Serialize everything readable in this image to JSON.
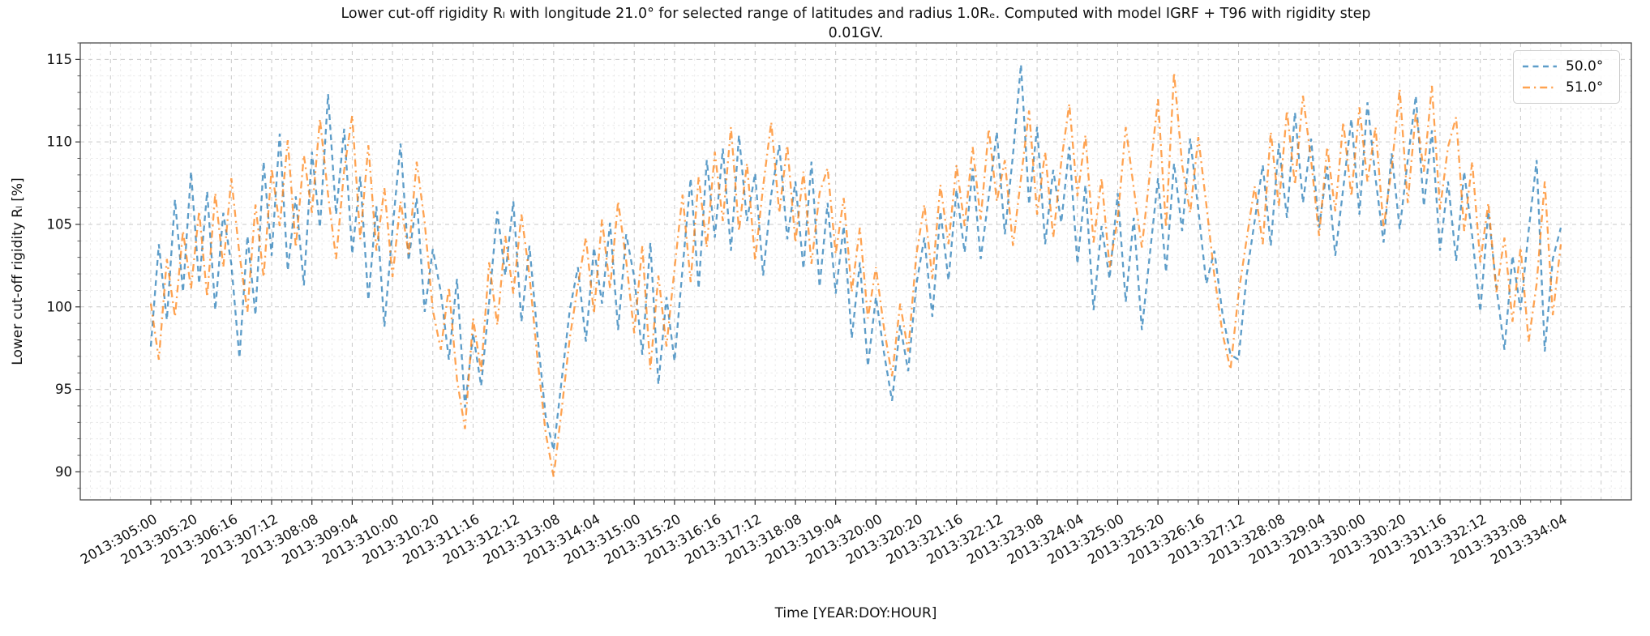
{
  "figure": {
    "title_line1": "Lower cut-off rigidity Rₗ with longitude 21.0° for selected range of latitudes and radius 1.0Rₑ. Computed with model IGRF + T96 with rigidity step",
    "title_line2": "0.01GV."
  },
  "chart_data": {
    "type": "line",
    "title": "Lower cut-off rigidity RL with longitude 21.0° for selected range of latitudes and radius 1.0Re. Computed with model IGRF + T96 with rigidity step 0.01GV.",
    "xlabel": "Time [YEAR:DOY:HOUR]",
    "ylabel": "Lower cut-off rigidity Rₗ [%]",
    "ylim": [
      88.3,
      116.0
    ],
    "y_ticks": [
      90,
      95,
      100,
      105,
      110,
      115
    ],
    "y_minor_step": 1,
    "xlim_hours": [
      -35,
      735
    ],
    "x_tick_step_hours": 20,
    "x_minor_step_hours": 5,
    "x_tick_labels": [
      "2013:305:00",
      "2013:305:20",
      "2013:306:16",
      "2013:307:12",
      "2013:308:08",
      "2013:309:04",
      "2013:310:00",
      "2013:310:20",
      "2013:311:16",
      "2013:312:12",
      "2013:313:08",
      "2013:314:04",
      "2013:315:00",
      "2013:315:20",
      "2013:316:16",
      "2013:317:12",
      "2013:318:08",
      "2013:319:04",
      "2013:320:00",
      "2013:320:20",
      "2013:321:16",
      "2013:322:12",
      "2013:323:08",
      "2013:324:04",
      "2013:325:00",
      "2013:325:20",
      "2013:326:16",
      "2013:327:12",
      "2013:328:08",
      "2013:329:04",
      "2013:330:00",
      "2013:330:20",
      "2013:331:16",
      "2013:332:12",
      "2013:333:08",
      "2013:334:04"
    ],
    "grid": true,
    "legend_position": "upper right",
    "x_start_hour": 0,
    "x_step_hours": 4,
    "series": [
      {
        "name": "50.0°",
        "color": "#1f77b4",
        "opacity": 0.72,
        "dash": "7 5.5",
        "line_width": 2.3,
        "values": [
          97.6,
          103.8,
          99.2,
          106.5,
          100.9,
          108.2,
          101.4,
          107.0,
          99.8,
          105.7,
          102.6,
          96.9,
          104.3,
          99.5,
          108.8,
          103.1,
          110.5,
          102.2,
          106.7,
          101.3,
          109.4,
          104.8,
          112.9,
          105.6,
          110.8,
          103.2,
          107.9,
          100.4,
          106.1,
          98.8,
          104.7,
          109.9,
          102.8,
          106.6,
          99.7,
          103.5,
          100.9,
          96.8,
          101.7,
          93.9,
          98.4,
          95.2,
          100.3,
          105.8,
          101.9,
          106.4,
          99.1,
          103.7,
          98.2,
          93.4,
          91.3,
          95.6,
          99.8,
          102.4,
          97.9,
          103.6,
          100.2,
          105.1,
          98.6,
          104.4,
          101.8,
          97.1,
          103.9,
          95.3,
          100.6,
          96.7,
          102.3,
          107.8,
          101.1,
          108.9,
          104.2,
          109.6,
          103.4,
          110.4,
          105.2,
          108.1,
          101.9,
          106.8,
          109.8,
          104.1,
          107.6,
          102.3,
          108.8,
          101.2,
          106.3,
          100.8,
          104.9,
          98.1,
          102.7,
          96.4,
          100.6,
          97.2,
          94.3,
          98.9,
          96.1,
          101.3,
          104.2,
          99.4,
          105.8,
          101.6,
          107.1,
          103.3,
          108.4,
          102.9,
          106.7,
          110.6,
          104.4,
          109.2,
          114.7,
          106.2,
          110.9,
          103.8,
          108.3,
          105.1,
          109.7,
          102.6,
          107.4,
          99.8,
          104.9,
          101.7,
          106.9,
          100.3,
          105.4,
          98.6,
          103.2,
          107.8,
          102.1,
          108.7,
          104.6,
          110.2,
          105.9,
          101.4,
          103.4,
          99.6,
          97.1,
          96.8,
          101.9,
          105.2,
          108.6,
          103.7,
          109.9,
          105.4,
          111.8,
          106.3,
          110.2,
          104.8,
          108.5,
          103.1,
          107.2,
          111.4,
          105.6,
          112.4,
          107.8,
          103.9,
          109.3,
          104.7,
          108.9,
          112.8,
          106.1,
          110.7,
          103.4,
          107.6,
          102.8,
          108.2,
          104.3,
          99.7,
          105.8,
          101.2,
          97.4,
          103.1,
          99.8,
          104.6,
          108.9,
          97.3,
          102.9,
          104.8
        ]
      },
      {
        "name": "51.0°",
        "color": "#ff7f0e",
        "opacity": 0.72,
        "dash": "9 5 2.2 5",
        "line_width": 2.3,
        "values": [
          100.2,
          96.8,
          102.9,
          99.4,
          104.6,
          101.1,
          105.8,
          100.6,
          106.9,
          102.4,
          107.8,
          103.2,
          99.7,
          106.2,
          101.8,
          108.4,
          104.9,
          110.1,
          103.6,
          109.2,
          105.7,
          111.4,
          106.8,
          102.9,
          108.3,
          111.6,
          104.1,
          109.8,
          103.4,
          107.2,
          101.8,
          106.4,
          103.2,
          108.8,
          105.1,
          99.8,
          97.4,
          101.2,
          95.6,
          92.6,
          99.3,
          96.1,
          102.7,
          98.9,
          104.3,
          100.8,
          105.6,
          101.9,
          96.8,
          92.4,
          89.7,
          93.8,
          98.1,
          101.3,
          104.2,
          99.6,
          105.3,
          101.1,
          106.4,
          102.8,
          98.4,
          103.7,
          96.2,
          101.9,
          97.6,
          102.3,
          106.8,
          101.5,
          107.9,
          103.6,
          109.4,
          105.2,
          110.9,
          104.6,
          108.7,
          102.8,
          107.3,
          111.2,
          105.7,
          109.8,
          103.9,
          108.2,
          102.6,
          106.9,
          108.4,
          103.2,
          106.6,
          100.9,
          104.8,
          99.3,
          102.4,
          98.7,
          95.8,
          100.2,
          97.3,
          103.1,
          106.2,
          101.7,
          107.4,
          103.8,
          108.6,
          104.9,
          109.7,
          105.3,
          110.8,
          106.4,
          108.9,
          103.7,
          107.8,
          111.9,
          105.6,
          109.4,
          104.2,
          108.8,
          112.3,
          106.7,
          110.4,
          103.9,
          107.8,
          102.4,
          105.3,
          110.9,
          107.2,
          103.6,
          108.1,
          112.6,
          104.8,
          114.2,
          108.6,
          105.7,
          110.3,
          106.2,
          101.9,
          98.4,
          96.2,
          100.8,
          104.1,
          107.3,
          103.8,
          110.6,
          106.1,
          111.9,
          107.4,
          112.8,
          108.9,
          104.3,
          109.7,
          105.8,
          111.2,
          106.7,
          112.1,
          107.6,
          110.9,
          104.8,
          108.4,
          113.2,
          106.3,
          111.8,
          108.2,
          113.4,
          105.9,
          109.7,
          111.5,
          104.6,
          108.8,
          102.7,
          106.3,
          100.9,
          104.2,
          99.1,
          103.6,
          97.9,
          101.4,
          107.6,
          99.5,
          103.8
        ]
      }
    ]
  }
}
